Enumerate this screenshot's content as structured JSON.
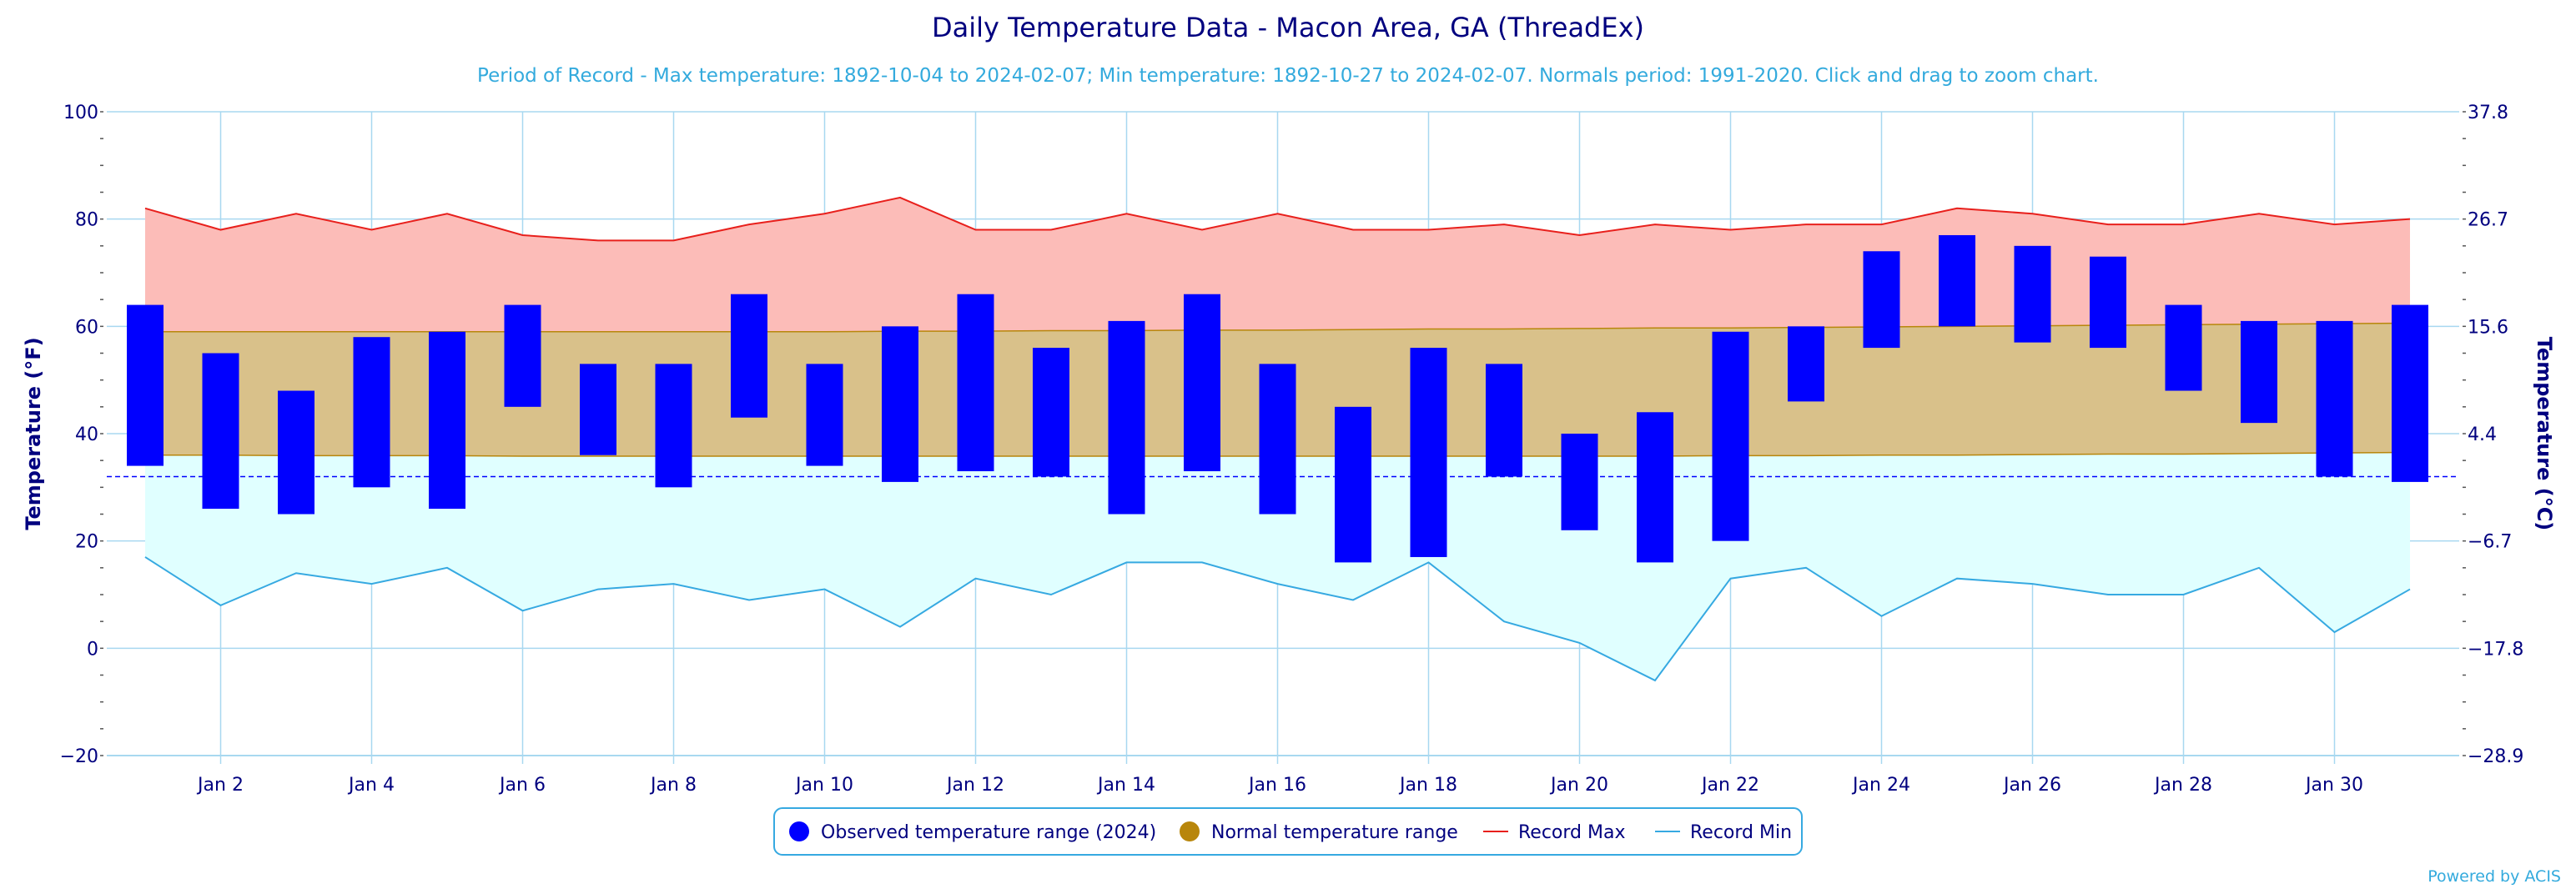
{
  "chart_data": {
    "type": "bar",
    "title": "Daily Temperature Data - Macon Area, GA (ThreadEx)",
    "subtitle": "Period of Record - Max temperature: 1892-10-04 to 2024-02-07; Min temperature: 1892-10-27 to 2024-02-07. Normals period: 1991-2020. Click and drag to zoom chart.",
    "ylabel_left": "Temperature (°F)",
    "ylabel_right": "Temperature (°C)",
    "ylim": [
      -20,
      100
    ],
    "y_ticks_left": [
      "100",
      "80",
      "60",
      "40",
      "20",
      "0",
      "−20"
    ],
    "y_ticks_right": [
      "37.8",
      "26.7",
      "15.6",
      "4.4",
      "−6.7",
      "−17.8",
      "−28.9"
    ],
    "x_tick_labels": [
      {
        "day": 2,
        "label": "Jan 2"
      },
      {
        "day": 4,
        "label": "Jan 4"
      },
      {
        "day": 6,
        "label": "Jan 6"
      },
      {
        "day": 8,
        "label": "Jan 8"
      },
      {
        "day": 10,
        "label": "Jan 10"
      },
      {
        "day": 12,
        "label": "Jan 12"
      },
      {
        "day": 14,
        "label": "Jan 14"
      },
      {
        "day": 16,
        "label": "Jan 16"
      },
      {
        "day": 18,
        "label": "Jan 18"
      },
      {
        "day": 20,
        "label": "Jan 20"
      },
      {
        "day": 22,
        "label": "Jan 22"
      },
      {
        "day": 24,
        "label": "Jan 24"
      },
      {
        "day": 26,
        "label": "Jan 26"
      },
      {
        "day": 28,
        "label": "Jan 28"
      },
      {
        "day": 30,
        "label": "Jan 30"
      }
    ],
    "days": [
      1,
      2,
      3,
      4,
      5,
      6,
      7,
      8,
      9,
      10,
      11,
      12,
      13,
      14,
      15,
      16,
      17,
      18,
      19,
      20,
      21,
      22,
      23,
      24,
      25,
      26,
      27,
      28,
      29,
      30,
      31
    ],
    "freezing_line": 32,
    "series": [
      {
        "name": "Observed temperature range (2024)",
        "type": "range-bar",
        "color": "#0000ff",
        "high": [
          64,
          55,
          48,
          58,
          59,
          64,
          53,
          53,
          66,
          53,
          60,
          66,
          56,
          61,
          66,
          53,
          45,
          56,
          53,
          40,
          44,
          59,
          60,
          74,
          77,
          75,
          73,
          64,
          61,
          61,
          64
        ],
        "low": [
          34,
          26,
          25,
          30,
          26,
          45,
          36,
          30,
          43,
          34,
          31,
          33,
          32,
          25,
          33,
          25,
          16,
          17,
          32,
          22,
          16,
          20,
          46,
          56,
          60,
          57,
          56,
          48,
          42,
          32,
          31
        ]
      },
      {
        "name": "Normal temperature range",
        "type": "area-range",
        "color": "#b8860b",
        "high": [
          59.0,
          59.0,
          59.0,
          59.0,
          59.0,
          59.0,
          59.0,
          59.0,
          59.0,
          59.0,
          59.1,
          59.1,
          59.2,
          59.2,
          59.3,
          59.3,
          59.4,
          59.5,
          59.5,
          59.6,
          59.7,
          59.7,
          59.8,
          59.9,
          60.0,
          60.1,
          60.2,
          60.3,
          60.4,
          60.5,
          60.6
        ],
        "low": [
          36.0,
          36.0,
          35.9,
          35.9,
          35.9,
          35.8,
          35.8,
          35.8,
          35.8,
          35.8,
          35.8,
          35.8,
          35.8,
          35.8,
          35.8,
          35.8,
          35.8,
          35.8,
          35.8,
          35.8,
          35.8,
          35.9,
          35.9,
          36.0,
          36.0,
          36.1,
          36.2,
          36.2,
          36.3,
          36.4,
          36.5
        ]
      },
      {
        "name": "Record Max",
        "type": "line",
        "color": "#e8201c",
        "values": [
          82,
          78,
          81,
          78,
          81,
          77,
          76,
          76,
          79,
          81,
          84,
          78,
          78,
          81,
          78,
          81,
          78,
          78,
          79,
          77,
          79,
          78,
          79,
          79,
          82,
          81,
          79,
          79,
          81,
          79,
          80
        ]
      },
      {
        "name": "Record Min",
        "type": "line",
        "color": "#36a9e1",
        "values": [
          17,
          8,
          14,
          12,
          15,
          7,
          11,
          12,
          9,
          11,
          4,
          13,
          10,
          16,
          16,
          12,
          9,
          16,
          5,
          1,
          -6,
          13,
          15,
          6,
          13,
          12,
          10,
          10,
          15,
          3,
          11
        ]
      }
    ],
    "legend": {
      "placement": "bottom-center",
      "items": [
        "Observed temperature range (2024)",
        "Normal temperature range",
        "Record Max",
        "Record Min"
      ]
    },
    "credit": "Powered by ACIS",
    "colors": {
      "text": "#00007f",
      "subtitle": "#33aadd",
      "grid": "#a8d8f0",
      "record_max_fill": "#fcbcb8",
      "record_min_fill": "#e0ffff",
      "normal_fill": "#d9c18a",
      "normal_edge": "#b8860b",
      "freezing": "#0000ff"
    }
  }
}
